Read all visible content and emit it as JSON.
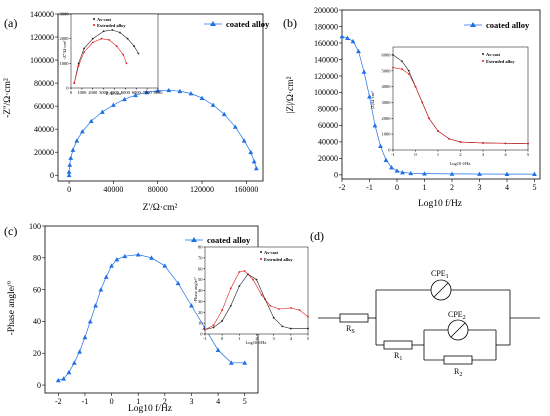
{
  "colors": {
    "coated": "#1f6fe6",
    "ascast": "#222222",
    "extruded": "#e02020"
  },
  "icons": {
    "cpe": "circle-slash-icon",
    "resistor": "rectangle-resistor-icon",
    "marker": "triangle-marker-icon"
  },
  "chart_data": [
    {
      "panel": "(a)",
      "type": "scatter",
      "xlabel": "Z'/Ω·cm²",
      "ylabel": "-Z''/Ω·cm²",
      "xlim": [
        -10000,
        175000
      ],
      "ylim": [
        -5000,
        140000
      ],
      "xticks": [
        "0",
        "40000",
        "80000",
        "120000",
        "160000"
      ],
      "yticks": [
        "0",
        "20000",
        "40000",
        "60000",
        "80000",
        "100000",
        "120000",
        "140000"
      ],
      "xtick_values": [
        0,
        40000,
        80000,
        120000,
        160000
      ],
      "ytick_values": [
        0,
        20000,
        40000,
        60000,
        80000,
        100000,
        120000,
        140000
      ],
      "series": [
        {
          "name": "coated alloy",
          "marker": "triangle",
          "points": [
            [
              0,
              0
            ],
            [
              0,
              3000
            ],
            [
              600,
              9000
            ],
            [
              1500,
              15000
            ],
            [
              3500,
              22000
            ],
            [
              7000,
              30000
            ],
            [
              12000,
              38000
            ],
            [
              20000,
              47000
            ],
            [
              30000,
              55000
            ],
            [
              40000,
              61000
            ],
            [
              50000,
              66000
            ],
            [
              60000,
              69500
            ],
            [
              70000,
              72000
            ],
            [
              80000,
              73500
            ],
            [
              90000,
              73800
            ],
            [
              100000,
              73000
            ],
            [
              110000,
              71000
            ],
            [
              120000,
              67000
            ],
            [
              130000,
              61000
            ],
            [
              140000,
              53000
            ],
            [
              150000,
              42000
            ],
            [
              158000,
              30000
            ],
            [
              164000,
              20000
            ],
            [
              167000,
              12000
            ],
            [
              169000,
              6000
            ]
          ]
        }
      ],
      "inset": {
        "xlabel": "Z'/Ω·cm²",
        "ylabel": "-Z''/Ω·cm²",
        "xlim": [
          0,
          8000
        ],
        "ylim": [
          0,
          3000
        ],
        "xticks": [
          "0",
          "1000",
          "2000",
          "3000",
          "4000",
          "5000",
          "6000",
          "7000",
          "8000"
        ],
        "yticks": [
          "0",
          "1000",
          "2000",
          "3000"
        ],
        "xtick_values": [
          0,
          1000,
          2000,
          3000,
          4000,
          5000,
          6000,
          7000,
          8000
        ],
        "ytick_values": [
          0,
          1000,
          2000,
          3000
        ],
        "series": [
          {
            "name": "As-cast",
            "points": [
              [
                300,
                200
              ],
              [
                700,
                1000
              ],
              [
                1200,
                1600
              ],
              [
                2000,
                2000
              ],
              [
                3000,
                2300
              ],
              [
                3800,
                2350
              ],
              [
                4500,
                2250
              ],
              [
                5200,
                2000
              ],
              [
                5800,
                1700
              ],
              [
                6200,
                1400
              ]
            ]
          },
          {
            "name": "Extruded alloy",
            "points": [
              [
                300,
                200
              ],
              [
                700,
                900
              ],
              [
                1200,
                1450
              ],
              [
                2000,
                1850
              ],
              [
                2800,
                2000
              ],
              [
                3500,
                1950
              ],
              [
                4200,
                1700
              ],
              [
                4800,
                1350
              ],
              [
                5100,
                1000
              ]
            ]
          }
        ]
      }
    },
    {
      "panel": "(b)",
      "type": "line",
      "xlabel": "Log10 f/Hz",
      "ylabel": "|Z|/Ω·cm²",
      "xlim": [
        -2,
        5.2
      ],
      "ylim": [
        -5000,
        200000
      ],
      "xticks": [
        "-2",
        "-1",
        "0",
        "1",
        "2",
        "3",
        "4",
        "5"
      ],
      "yticks": [
        "0",
        "20000",
        "40000",
        "60000",
        "80000",
        "100000",
        "120000",
        "140000",
        "160000",
        "180000",
        "200000"
      ],
      "xtick_values": [
        -2,
        -1,
        0,
        1,
        2,
        3,
        4,
        5
      ],
      "ytick_values": [
        0,
        20000,
        40000,
        60000,
        80000,
        100000,
        120000,
        140000,
        160000,
        180000,
        200000
      ],
      "series": [
        {
          "name": "coated alloy",
          "marker": "triangle",
          "points": [
            [
              -2,
              168000
            ],
            [
              -1.8,
              166000
            ],
            [
              -1.6,
              162000
            ],
            [
              -1.4,
              150000
            ],
            [
              -1.2,
              125000
            ],
            [
              -1.0,
              95000
            ],
            [
              -0.8,
              60000
            ],
            [
              -0.6,
              35000
            ],
            [
              -0.4,
              18000
            ],
            [
              -0.2,
              9000
            ],
            [
              0,
              5000
            ],
            [
              0.2,
              3000
            ],
            [
              0.5,
              2000
            ],
            [
              1,
              1500
            ],
            [
              2,
              1200
            ],
            [
              3,
              1100
            ],
            [
              4,
              1000
            ],
            [
              5,
              1000
            ]
          ]
        }
      ],
      "inset": {
        "xlabel": "Log10 f/Hz",
        "ylabel": "|Z|/Ω·cm²",
        "xlim": [
          -1,
          5
        ],
        "ylim": [
          0,
          6500
        ],
        "xticks": [
          "-1",
          "0",
          "1",
          "2",
          "3",
          "4",
          "5"
        ],
        "yticks": [
          "0",
          "1000",
          "2000",
          "3000",
          "4000",
          "5000",
          "6000"
        ],
        "xtick_values": [
          -1,
          0,
          1,
          2,
          3,
          4,
          5
        ],
        "ytick_values": [
          0,
          1000,
          2000,
          3000,
          4000,
          5000,
          6000
        ],
        "series": [
          {
            "name": "As-cast",
            "points": [
              [
                -1,
                6000
              ],
              [
                -0.6,
                5600
              ],
              [
                -0.3,
                5000
              ],
              [
                0,
                4000
              ],
              [
                0.3,
                3000
              ],
              [
                0.6,
                2000
              ],
              [
                1,
                1200
              ],
              [
                1.5,
                700
              ],
              [
                2,
                500
              ],
              [
                3,
                450
              ],
              [
                4,
                420
              ],
              [
                5,
                400
              ]
            ]
          },
          {
            "name": "Extruded alloy",
            "points": [
              [
                -1,
                5200
              ],
              [
                -0.6,
                5100
              ],
              [
                -0.3,
                4800
              ],
              [
                0,
                4000
              ],
              [
                0.3,
                3000
              ],
              [
                0.6,
                2000
              ],
              [
                1,
                1200
              ],
              [
                1.5,
                700
              ],
              [
                2,
                500
              ],
              [
                3,
                450
              ],
              [
                4,
                420
              ],
              [
                5,
                400
              ]
            ]
          }
        ]
      }
    },
    {
      "panel": "(c)",
      "type": "line",
      "xlabel": "Log10 f/Hz",
      "ylabel": "-Phase angle/°",
      "xlim": [
        -2.5,
        5.5
      ],
      "ylim": [
        -5,
        100
      ],
      "xticks": [
        "-2",
        "-1",
        "0",
        "1",
        "2",
        "3",
        "4",
        "5"
      ],
      "yticks": [
        "0",
        "20",
        "40",
        "60",
        "80",
        "100"
      ],
      "xtick_values": [
        -2,
        -1,
        0,
        1,
        2,
        3,
        4,
        5
      ],
      "ytick_values": [
        0,
        20,
        40,
        60,
        80,
        100
      ],
      "series": [
        {
          "name": "coated alloy",
          "marker": "triangle",
          "points": [
            [
              -2,
              3
            ],
            [
              -1.8,
              4
            ],
            [
              -1.6,
              8
            ],
            [
              -1.4,
              14
            ],
            [
              -1.2,
              21
            ],
            [
              -1.0,
              30
            ],
            [
              -0.8,
              40
            ],
            [
              -0.6,
              50
            ],
            [
              -0.4,
              60
            ],
            [
              -0.2,
              68
            ],
            [
              0,
              75
            ],
            [
              0.2,
              79
            ],
            [
              0.5,
              81
            ],
            [
              1,
              82
            ],
            [
              1.5,
              80
            ],
            [
              2,
              75
            ],
            [
              2.5,
              64
            ],
            [
              3,
              50
            ],
            [
              3.5,
              36
            ],
            [
              4,
              22
            ],
            [
              4.5,
              14
            ],
            [
              5,
              14
            ]
          ]
        }
      ],
      "inset": {
        "xlabel": "Log10 f/Hz",
        "ylabel": "-Phase angle/°",
        "xlim": [
          -1,
          5
        ],
        "ylim": [
          0,
          80
        ],
        "xticks": [
          "-1",
          "0",
          "1",
          "2",
          "3",
          "4",
          "5"
        ],
        "yticks": [
          "0",
          "10",
          "20",
          "30",
          "40",
          "50",
          "60",
          "70",
          "80"
        ],
        "xtick_values": [
          -1,
          0,
          1,
          2,
          3,
          4,
          5
        ],
        "ytick_values": [
          0,
          10,
          20,
          30,
          40,
          50,
          60,
          70,
          80
        ],
        "series": [
          {
            "name": "As-cast",
            "points": [
              [
                -1,
                4
              ],
              [
                -0.5,
                6
              ],
              [
                0,
                12
              ],
              [
                0.5,
                26
              ],
              [
                1,
                44
              ],
              [
                1.5,
                55
              ],
              [
                2,
                50
              ],
              [
                2.5,
                32
              ],
              [
                3,
                15
              ],
              [
                3.5,
                7
              ],
              [
                4,
                5
              ],
              [
                5,
                5
              ]
            ]
          },
          {
            "name": "Extruded alloy",
            "points": [
              [
                -1,
                4
              ],
              [
                -0.5,
                8
              ],
              [
                0,
                22
              ],
              [
                0.5,
                42
              ],
              [
                1,
                57
              ],
              [
                1.3,
                58
              ],
              [
                1.8,
                50
              ],
              [
                2.3,
                36
              ],
              [
                2.8,
                26
              ],
              [
                3.3,
                23
              ],
              [
                4,
                24
              ],
              [
                4.5,
                22
              ],
              [
                5,
                16
              ]
            ]
          }
        ]
      }
    }
  ],
  "circuit": {
    "panel": "(d)",
    "components": [
      "R_S",
      "CPE_1",
      "R_1",
      "CPE_2",
      "R_2"
    ],
    "labels": {
      "rs_main": "R",
      "rs_sub": "S",
      "cpe1_main": "CPE",
      "cpe1_sub": "1",
      "r1_main": "R",
      "r1_sub": "1",
      "cpe2_main": "CPE",
      "cpe2_sub": "2",
      "r2_main": "R",
      "r2_sub": "2"
    }
  }
}
